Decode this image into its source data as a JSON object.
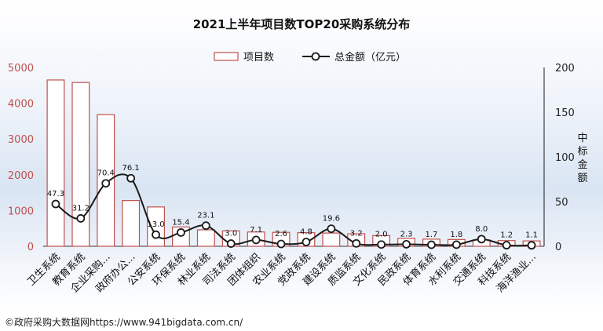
{
  "colors": {
    "bar_stroke": "#c0504d",
    "bar_fill": "#ffffff",
    "line": "#1a1a1a",
    "left_axis": "#c0504d",
    "right_axis": "#1a1a1a",
    "bg_band": "#dde8f5"
  },
  "footer": "©政府采购大数据网https://www.941bigdata.com.cn/",
  "chart_data": {
    "type": "bar",
    "title": "2021上半年项目数TOP20采购系统分布",
    "categories": [
      "卫生系统",
      "教育系统",
      "企业采购...",
      "政府办公...",
      "公安系统",
      "环保系统",
      "林业系统",
      "司法系统",
      "团体组织",
      "农业系统",
      "党政系统",
      "建设系统",
      "质监系统",
      "文化系统",
      "民政系统",
      "体育系统",
      "水利系统",
      "交通系统",
      "科技系统",
      "海洋渔业..."
    ],
    "y_left_ticks": [
      "0",
      "1000",
      "2000",
      "3000",
      "4000",
      "5000"
    ],
    "y_right_ticks": [
      "0",
      "50",
      "100",
      "150",
      "200"
    ],
    "ylim_left": [
      0,
      5000
    ],
    "ylim_right": [
      0,
      200
    ],
    "ylabel_right": "中标金额",
    "legend_position": "top",
    "series": [
      {
        "name": "项目数",
        "type": "bar",
        "axis": "left",
        "values": [
          4650,
          4580,
          3680,
          1280,
          1100,
          540,
          460,
          430,
          400,
          390,
          380,
          370,
          350,
          300,
          220,
          200,
          190,
          180,
          160,
          150
        ]
      },
      {
        "name": "总金额（亿元）",
        "type": "line",
        "axis": "right",
        "values": [
          47.3,
          31.2,
          70.4,
          76.1,
          13.0,
          15.4,
          23.1,
          3.0,
          7.1,
          2.6,
          4.8,
          19.6,
          3.2,
          2.0,
          2.3,
          1.7,
          1.8,
          8.0,
          1.2,
          1.1
        ],
        "labels": [
          "47.3",
          "31.2",
          "70.4",
          "76.1",
          "13.0",
          "15.4",
          "23.1",
          "3.0",
          "7.1",
          "2.6",
          "4.8",
          "19.6",
          "3.2",
          "2.0",
          "2.3",
          "1.7",
          "1.8",
          "8.0",
          "1.2",
          "1.1"
        ]
      }
    ]
  }
}
